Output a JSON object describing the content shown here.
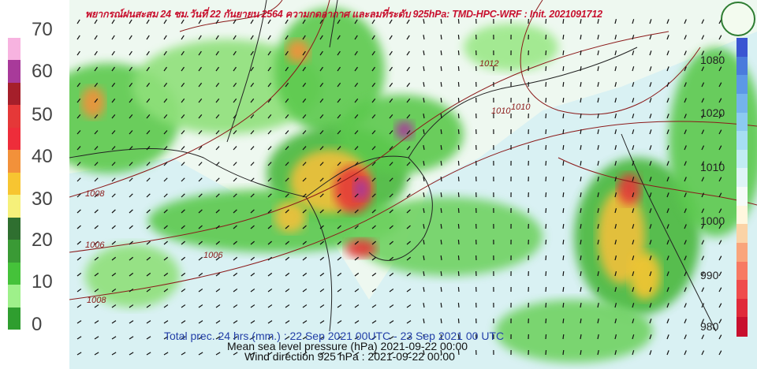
{
  "title": "พยากรณ์ฝนสะสม 24 ชม.วันที่ 22 กันยายน 2564 ความกดอากาศ และลมที่ระดับ 925hPa: TMD-HPC-WRF : Init. 2021091712",
  "footer": {
    "precip": "Total prec. 24 hrs.(mm.) : 22 Sep 2021 00UTC - 23 Sep 2021 00 UTC",
    "pressure": "Mean sea level pressure (hPa) 2021-09-22 00:00",
    "wind": "Wind direction 925 hPa : 2021-09-22 00:00"
  },
  "precip_scale": {
    "ticks": [
      "0",
      "10",
      "20",
      "30",
      "40",
      "50",
      "60",
      "70"
    ],
    "colors": [
      "#2f9e2f",
      "#9ef08a",
      "#45c23a",
      "#3a9a35",
      "#2f6f30",
      "#f6f07a",
      "#f7c531",
      "#f2913a",
      "#ee2d3a",
      "#e53838",
      "#a51f2a",
      "#a83a9a",
      "#f7b3e0"
    ]
  },
  "pressure_scale": {
    "ticks": [
      "980",
      "990",
      "1000",
      "1010",
      "1020",
      "1080"
    ],
    "colors": [
      "#c8102e",
      "#e02a3a",
      "#ef4c4c",
      "#f77a63",
      "#f9a57c",
      "#fbd3a6",
      "#fff7de",
      "#f6fbf8",
      "#dff4f7",
      "#c1ecf3",
      "#a6def2",
      "#8ccaf0",
      "#74b3ec",
      "#5c98e6",
      "#4a7bdc",
      "#3a55d2"
    ]
  },
  "contour_labels": [
    "1006",
    "1008",
    "1006",
    "1010",
    "1012",
    "1010",
    "1008"
  ],
  "colors": {
    "ocean": "#d9f1f3",
    "title": "#c8102e",
    "footer_precip": "#2340a8",
    "footer_text": "#111111",
    "isobar": "#8b1a1a"
  }
}
